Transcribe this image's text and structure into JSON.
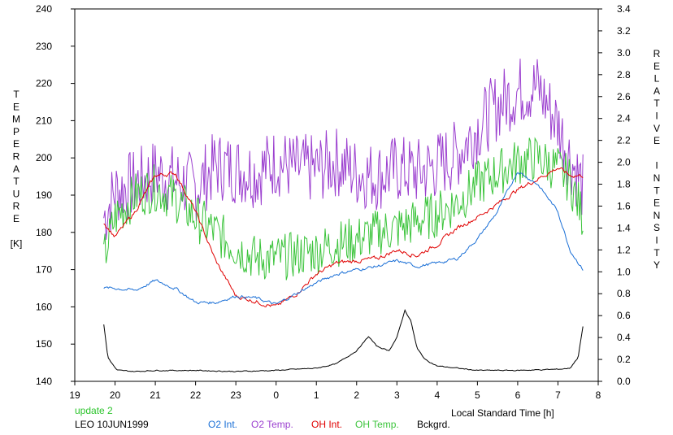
{
  "chart_data": {
    "type": "line",
    "title": "",
    "xlabel": "Local Standard Time [h]",
    "ylabel_left": [
      "T",
      "E",
      "M",
      "P",
      "E",
      "R",
      "A",
      "T",
      "U",
      "R",
      "E",
      "",
      "[K]"
    ],
    "ylabel_right": [
      "R",
      "E",
      "L",
      "A",
      "T",
      "I",
      "V",
      "E",
      "",
      "I",
      "N",
      "T",
      "E",
      "N",
      "S",
      "I",
      "T",
      "Y"
    ],
    "x_ticks": [
      "19",
      "20",
      "21",
      "22",
      "23",
      "0",
      "1",
      "2",
      "3",
      "4",
      "5",
      "6",
      "7",
      "8"
    ],
    "xlim": [
      19,
      32
    ],
    "y_left_ticks": [
      "140",
      "150",
      "160",
      "170",
      "180",
      "190",
      "200",
      "210",
      "220",
      "230",
      "240"
    ],
    "y_left_lim": [
      140,
      240
    ],
    "y_right_ticks": [
      "0.0",
      "0.2",
      "0.4",
      "0.6",
      "0.8",
      "1.0",
      "1.2",
      "1.4",
      "1.6",
      "1.8",
      "2.0",
      "2.2",
      "2.4",
      "2.6",
      "2.8",
      "3.0",
      "3.2",
      "3.4"
    ],
    "y_right_lim": [
      0,
      3.4
    ],
    "grid": false,
    "footer": {
      "update": "update 2",
      "station_date": "LEO 10JUN1999"
    },
    "legend": [
      {
        "label": "O2 Int.",
        "color": "#1a6fd6"
      },
      {
        "label": "O2 Temp.",
        "color": "#9b3fcf"
      },
      {
        "label": "OH Int.",
        "color": "#e00000"
      },
      {
        "label": "OH Temp.",
        "color": "#3cc43c"
      },
      {
        "label": "Bckgrd.",
        "color": "#000000"
      }
    ],
    "series": [
      {
        "name": "O2 Temp.",
        "axis": "left",
        "color": "#9b3fcf",
        "noise": 6,
        "x": [
          19.72,
          20.0,
          20.5,
          21.0,
          21.5,
          22.0,
          22.5,
          23.0,
          23.5,
          24.0,
          24.5,
          25.0,
          25.5,
          26.0,
          26.5,
          27.0,
          27.5,
          28.0,
          28.5,
          29.0,
          29.5,
          30.0,
          30.5,
          31.0,
          31.3,
          31.62
        ],
        "y": [
          184,
          191,
          193,
          196,
          194,
          192,
          198,
          197,
          196,
          199,
          197,
          197,
          199,
          196,
          195,
          197,
          196,
          198,
          201,
          208,
          214,
          218,
          219,
          209,
          200,
          192
        ]
      },
      {
        "name": "OH Temp.",
        "axis": "left",
        "color": "#3cc43c",
        "noise": 4,
        "x": [
          19.72,
          20.0,
          20.5,
          21.0,
          21.5,
          22.0,
          22.5,
          23.0,
          23.5,
          24.0,
          24.5,
          25.0,
          25.5,
          26.0,
          26.5,
          27.0,
          27.5,
          28.0,
          28.5,
          29.0,
          29.5,
          30.0,
          30.5,
          31.0,
          31.3,
          31.62
        ],
        "y": [
          173,
          184,
          190,
          192,
          189,
          184,
          180,
          176,
          173,
          173,
          174,
          175,
          177,
          178,
          180,
          181,
          183,
          185,
          188,
          193,
          196,
          199,
          200,
          197,
          194,
          184
        ]
      },
      {
        "name": "OH Int.",
        "axis": "right",
        "color": "#e00000",
        "noise": 0.025,
        "x": [
          19.72,
          20.0,
          20.5,
          21.0,
          21.5,
          22.0,
          22.5,
          23.0,
          23.5,
          24.0,
          24.5,
          25.0,
          25.5,
          26.0,
          26.5,
          27.0,
          27.5,
          28.0,
          28.5,
          29.0,
          29.5,
          30.0,
          30.5,
          31.0,
          31.3,
          31.62
        ],
        "y": [
          1.45,
          1.32,
          1.55,
          1.88,
          1.9,
          1.55,
          1.1,
          0.78,
          0.73,
          0.68,
          0.8,
          0.98,
          1.08,
          1.1,
          1.12,
          1.2,
          1.15,
          1.25,
          1.4,
          1.5,
          1.62,
          1.75,
          1.85,
          1.95,
          1.88,
          1.88
        ]
      },
      {
        "name": "O2 Int.",
        "axis": "right",
        "color": "#1a6fd6",
        "noise": 0.018,
        "x": [
          19.72,
          20.0,
          20.5,
          21.0,
          21.5,
          22.0,
          22.5,
          23.0,
          23.5,
          24.0,
          24.5,
          25.0,
          25.5,
          26.0,
          26.5,
          27.0,
          27.5,
          28.0,
          28.5,
          29.0,
          29.5,
          30.0,
          30.5,
          31.0,
          31.3,
          31.62
        ],
        "y": [
          0.85,
          0.85,
          0.83,
          0.92,
          0.85,
          0.72,
          0.72,
          0.78,
          0.76,
          0.7,
          0.8,
          0.9,
          0.98,
          1.02,
          1.05,
          1.1,
          1.05,
          1.08,
          1.12,
          1.3,
          1.55,
          1.92,
          1.8,
          1.55,
          1.2,
          1.02
        ]
      },
      {
        "name": "Bckgrd.",
        "axis": "right",
        "color": "#000000",
        "noise": 0.006,
        "x": [
          19.72,
          19.82,
          19.95,
          20.05,
          20.5,
          21.0,
          22.0,
          23.0,
          24.0,
          25.0,
          25.5,
          26.0,
          26.3,
          26.5,
          26.8,
          27.0,
          27.2,
          27.35,
          27.5,
          27.7,
          28.0,
          28.5,
          29.0,
          30.0,
          31.0,
          31.3,
          31.5,
          31.62
        ],
        "y": [
          0.52,
          0.22,
          0.15,
          0.1,
          0.09,
          0.1,
          0.1,
          0.09,
          0.1,
          0.12,
          0.16,
          0.28,
          0.41,
          0.32,
          0.28,
          0.4,
          0.65,
          0.55,
          0.3,
          0.2,
          0.14,
          0.12,
          0.1,
          0.1,
          0.11,
          0.12,
          0.22,
          0.5
        ]
      }
    ]
  }
}
